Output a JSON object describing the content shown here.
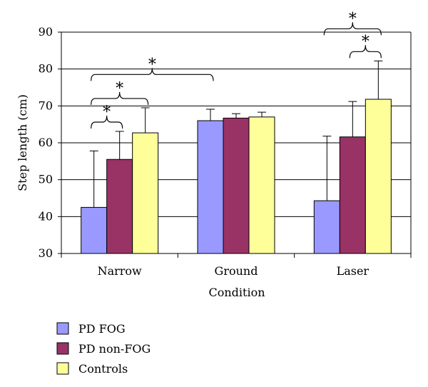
{
  "chart_data": {
    "type": "bar",
    "title": "",
    "xlabel": "Condition",
    "ylabel": "Step length (cm)",
    "ylim": [
      30,
      90
    ],
    "yticks": [
      30,
      40,
      50,
      60,
      70,
      80,
      90
    ],
    "grid": true,
    "legend_position": "bottom-left",
    "categories": [
      "Narrow",
      "Ground",
      "Laser"
    ],
    "series": [
      {
        "name": "PD FOG",
        "color": "#9999ff",
        "values": [
          42.5,
          66.0,
          44.3
        ],
        "errors": [
          15.3,
          3.1,
          17.5
        ]
      },
      {
        "name": "PD non-FOG",
        "color": "#993366",
        "values": [
          55.5,
          66.7,
          61.6
        ],
        "errors": [
          7.6,
          1.2,
          9.6
        ]
      },
      {
        "name": "Controls",
        "color": "#ffff99",
        "values": [
          62.7,
          67.0,
          71.8
        ],
        "errors": [
          6.8,
          1.3,
          10.4
        ]
      }
    ],
    "significance": [
      {
        "category": "Narrow",
        "from_series": 0,
        "to_series": 1,
        "label": "*"
      },
      {
        "category": "Narrow",
        "from_series": 0,
        "to_series": 2,
        "label": "*"
      },
      {
        "category": "Laser",
        "from_series": 1,
        "to_series": 2,
        "label": "*"
      },
      {
        "category": "Laser",
        "from_series": 0,
        "to_series": 2,
        "label": "*"
      }
    ],
    "cross_significance": [
      {
        "from": "Narrow",
        "to": "Ground",
        "label": "*"
      }
    ]
  }
}
